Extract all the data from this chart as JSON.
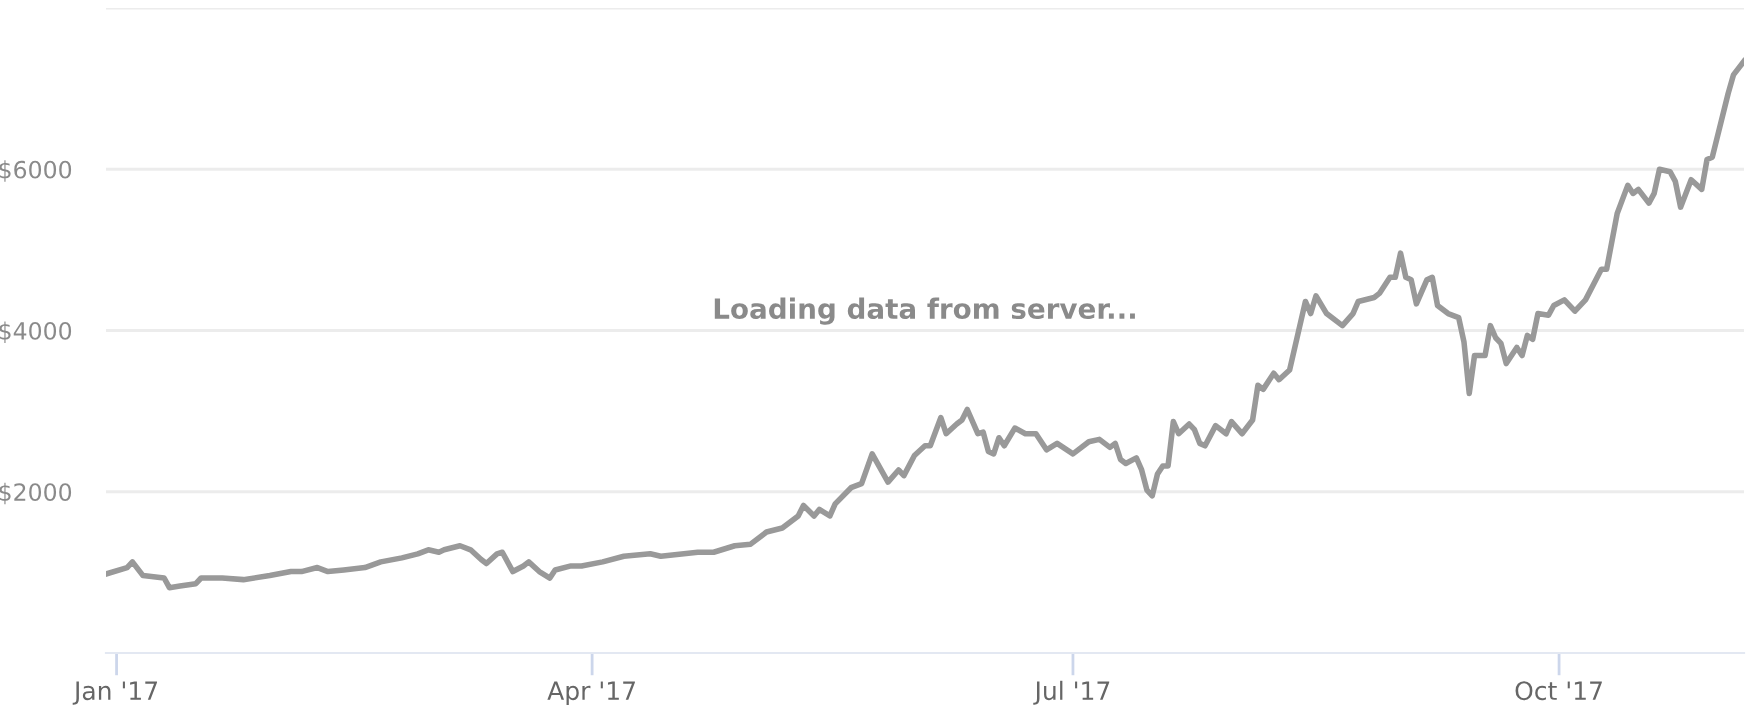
{
  "chart_data": {
    "type": "line",
    "annotations": [
      "Loading data from server..."
    ],
    "x": [
      "2016-12-30",
      "2017-01-03",
      "2017-01-04",
      "2017-01-06",
      "2017-01-10",
      "2017-01-11",
      "2017-01-13",
      "2017-01-16",
      "2017-01-17",
      "2017-01-21",
      "2017-01-25",
      "2017-01-30",
      "2017-02-03",
      "2017-02-05",
      "2017-02-08",
      "2017-02-10",
      "2017-02-13",
      "2017-02-17",
      "2017-02-20",
      "2017-02-24",
      "2017-02-27",
      "2017-03-01",
      "2017-03-03",
      "2017-03-04",
      "2017-03-07",
      "2017-03-09",
      "2017-03-11",
      "2017-03-12",
      "2017-03-14",
      "2017-03-15",
      "2017-03-17",
      "2017-03-19",
      "2017-03-20",
      "2017-03-22",
      "2017-03-24",
      "2017-03-25",
      "2017-03-28",
      "2017-03-30",
      "2017-04-03",
      "2017-04-07",
      "2017-04-12",
      "2017-04-14",
      "2017-04-21",
      "2017-04-24",
      "2017-04-28",
      "2017-05-01",
      "2017-05-04",
      "2017-05-07",
      "2017-05-10",
      "2017-05-11",
      "2017-05-13",
      "2017-05-14",
      "2017-05-16",
      "2017-05-17",
      "2017-05-20",
      "2017-05-22",
      "2017-05-24",
      "2017-05-27",
      "2017-05-29",
      "2017-05-30",
      "2017-06-01",
      "2017-06-03",
      "2017-06-04",
      "2017-06-06",
      "2017-06-07",
      "2017-06-09",
      "2017-06-10",
      "2017-06-11",
      "2017-06-13",
      "2017-06-14",
      "2017-06-15",
      "2017-06-16",
      "2017-06-17",
      "2017-06-18",
      "2017-06-20",
      "2017-06-22",
      "2017-06-24",
      "2017-06-26",
      "2017-06-28",
      "2017-07-01",
      "2017-07-04",
      "2017-07-06",
      "2017-07-08",
      "2017-07-09",
      "2017-07-10",
      "2017-07-11",
      "2017-07-13",
      "2017-07-14",
      "2017-07-15",
      "2017-07-16",
      "2017-07-17",
      "2017-07-18",
      "2017-07-19",
      "2017-07-20",
      "2017-07-21",
      "2017-07-23",
      "2017-07-24",
      "2017-07-25",
      "2017-07-26",
      "2017-07-28",
      "2017-07-30",
      "2017-07-31",
      "2017-08-02",
      "2017-08-04",
      "2017-08-05",
      "2017-08-06",
      "2017-08-08",
      "2017-08-09",
      "2017-08-11",
      "2017-08-14",
      "2017-08-15",
      "2017-08-16",
      "2017-08-18",
      "2017-08-21",
      "2017-08-23",
      "2017-08-24",
      "2017-08-27",
      "2017-08-28",
      "2017-08-30",
      "2017-08-31",
      "2017-09-01",
      "2017-09-02",
      "2017-09-03",
      "2017-09-04",
      "2017-09-06",
      "2017-09-07",
      "2017-09-08",
      "2017-09-10",
      "2017-09-12",
      "2017-09-13",
      "2017-09-14",
      "2017-09-15",
      "2017-09-17",
      "2017-09-18",
      "2017-09-19",
      "2017-09-20",
      "2017-09-21",
      "2017-09-22",
      "2017-09-23",
      "2017-09-24",
      "2017-09-25",
      "2017-09-26",
      "2017-09-27",
      "2017-09-29",
      "2017-09-30",
      "2017-10-02",
      "2017-10-04",
      "2017-10-06",
      "2017-10-09",
      "2017-10-10",
      "2017-10-12",
      "2017-10-14",
      "2017-10-15",
      "2017-10-16",
      "2017-10-18",
      "2017-10-19",
      "2017-10-20",
      "2017-10-22",
      "2017-10-23",
      "2017-10-24",
      "2017-10-26",
      "2017-10-28",
      "2017-10-29",
      "2017-10-30",
      "2017-11-02",
      "2017-11-03",
      "2017-11-05"
    ],
    "series": [
      {
        "color": "#999999",
        "values": [
          980,
          1060,
          1130,
          960,
          930,
          810,
          830,
          860,
          930,
          930,
          910,
          960,
          1010,
          1010,
          1060,
          1010,
          1030,
          1060,
          1130,
          1180,
          1230,
          1280,
          1250,
          1280,
          1330,
          1280,
          1160,
          1110,
          1230,
          1250,
          1010,
          1080,
          1130,
          1010,
          930,
          1030,
          1080,
          1080,
          1130,
          1200,
          1230,
          1200,
          1250,
          1250,
          1330,
          1350,
          1500,
          1550,
          1700,
          1830,
          1700,
          1780,
          1700,
          1850,
          2050,
          2100,
          2470,
          2120,
          2270,
          2200,
          2450,
          2570,
          2570,
          2920,
          2720,
          2840,
          2890,
          3020,
          2720,
          2740,
          2500,
          2470,
          2670,
          2570,
          2790,
          2720,
          2720,
          2520,
          2600,
          2470,
          2620,
          2650,
          2550,
          2600,
          2400,
          2350,
          2420,
          2270,
          2020,
          1950,
          2220,
          2320,
          2320,
          2870,
          2720,
          2840,
          2770,
          2600,
          2570,
          2820,
          2720,
          2870,
          2720,
          2890,
          3320,
          3270,
          3470,
          3390,
          3510,
          4360,
          4210,
          4430,
          4210,
          4060,
          4210,
          4360,
          4410,
          4460,
          4660,
          4660,
          4960,
          4660,
          4630,
          4330,
          4630,
          4660,
          4310,
          4210,
          4160,
          3860,
          3220,
          3690,
          3690,
          4060,
          3910,
          3840,
          3590,
          3690,
          3790,
          3690,
          3940,
          3890,
          4210,
          4190,
          4310,
          4380,
          4240,
          4380,
          4760,
          4760,
          5450,
          5800,
          5700,
          5750,
          5580,
          5700,
          6000,
          5970,
          5850,
          5530,
          5870,
          5750,
          6120,
          6150,
          6940,
          7170,
          7340
        ]
      }
    ],
    "xlim": [
      "2016-12-30",
      "2017-11-05"
    ],
    "xticks": [
      {
        "value": "2017-01-01",
        "label": "Jan '17"
      },
      {
        "value": "2017-04-01",
        "label": "Apr '17"
      },
      {
        "value": "2017-07-01",
        "label": "Jul '17"
      },
      {
        "value": "2017-10-01",
        "label": "Oct '17"
      }
    ],
    "ylim": [
      0,
      8000
    ],
    "yticks": [
      {
        "value": 2000,
        "label": "$2000"
      },
      {
        "value": 4000,
        "label": "$4000"
      },
      {
        "value": 6000,
        "label": "$6000"
      },
      {
        "value": 8000,
        "label": null
      }
    ],
    "grid": "y",
    "legend": false,
    "marker": "none",
    "line_style": "solid"
  }
}
